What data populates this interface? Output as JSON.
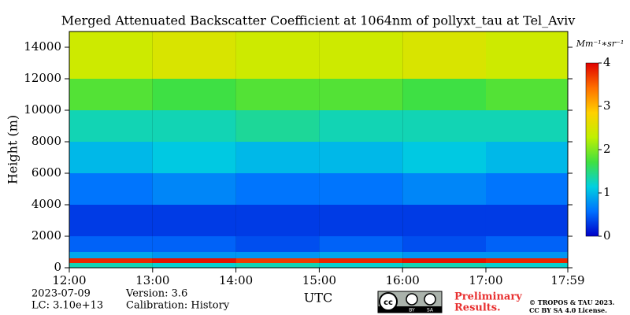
{
  "chart_data": {
    "type": "heatmap",
    "title": "Merged Attenuated Backscatter Coefficient at 1064nm of pollyxt_tau at Tel_Aviv",
    "y_label": "Height (m)",
    "x_label": "UTC",
    "xlim": [
      12,
      17.983
    ],
    "xticks": [
      {
        "value": 12,
        "label": "12:00"
      },
      {
        "value": 13,
        "label": "13:00"
      },
      {
        "value": 14,
        "label": "14:00"
      },
      {
        "value": 15,
        "label": "15:00"
      },
      {
        "value": 16,
        "label": "16:00"
      },
      {
        "value": 17,
        "label": "17:00"
      },
      {
        "value": 17.983,
        "label": "17:59"
      }
    ],
    "ylim": [
      0,
      15000
    ],
    "yticks": [
      0,
      2000,
      4000,
      6000,
      8000,
      10000,
      12000,
      14000
    ],
    "x_edges": [
      12,
      13,
      14,
      15,
      16,
      17,
      17.983
    ],
    "y_edges": [
      0,
      300,
      600,
      1000,
      2000,
      4000,
      6000,
      8000,
      10000,
      12000,
      15000
    ],
    "z": [
      [
        1.3,
        1.2,
        1.3,
        1.2,
        1.3,
        1.2
      ],
      [
        3.8,
        3.9,
        3.7,
        3.8,
        3.9,
        3.8
      ],
      [
        0.9,
        0.8,
        0.8,
        0.9,
        0.8,
        0.8
      ],
      [
        0.5,
        0.5,
        0.4,
        0.5,
        0.4,
        0.5
      ],
      [
        0.3,
        0.3,
        0.3,
        0.3,
        0.3,
        0.3
      ],
      [
        0.6,
        0.7,
        0.6,
        0.6,
        0.7,
        0.6
      ],
      [
        1.0,
        1.1,
        1.0,
        1.0,
        1.1,
        1.0
      ],
      [
        1.3,
        1.3,
        1.4,
        1.3,
        1.3,
        1.3
      ],
      [
        1.8,
        1.7,
        1.8,
        1.8,
        1.7,
        1.8
      ],
      [
        2.4,
        2.5,
        2.4,
        2.4,
        2.5,
        2.4
      ]
    ],
    "clim": [
      0,
      4
    ],
    "cticks": [
      0,
      1,
      2,
      3,
      4
    ],
    "colormap": [
      "#0000c8",
      "#0070ff",
      "#00d0e0",
      "#40e040",
      "#c0f000",
      "#ffd000",
      "#ff7000",
      "#e00000"
    ],
    "colorbar_unit": "Mm⁻¹∗sr⁻¹",
    "date": "2023-07-09",
    "lidar_constant": "LC: 3.10e+13",
    "version": "Version: 3.6",
    "calibration": "Calibration: History",
    "license_badge": [
      "cc",
      "BY",
      "SA"
    ],
    "notice": [
      "Preliminary",
      "Results."
    ],
    "copyright": [
      "© TROPOS & TAU 2023.",
      "CC BY SA 4.0 License."
    ]
  }
}
